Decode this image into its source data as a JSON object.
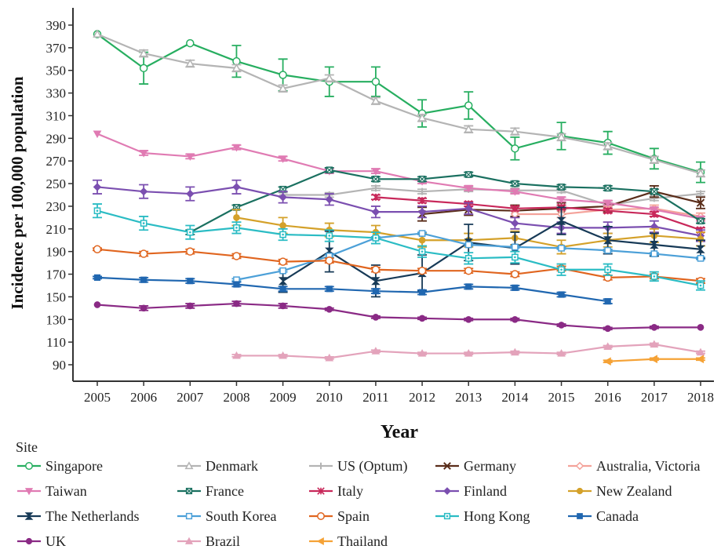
{
  "chart_data": {
    "type": "line",
    "xlabel": "Year",
    "ylabel": "Incidence per 100,000 population",
    "legend_title": "Site",
    "legend_position": "bottom",
    "grid": false,
    "xlim": [
      2005,
      2018
    ],
    "ylim": [
      72,
      400
    ],
    "x_ticks": [
      2005,
      2006,
      2007,
      2008,
      2009,
      2010,
      2011,
      2012,
      2013,
      2014,
      2015,
      2016,
      2017,
      2018
    ],
    "y_ticks": [
      90,
      110,
      130,
      150,
      170,
      190,
      210,
      230,
      250,
      270,
      290,
      310,
      330,
      350,
      370,
      390
    ],
    "series": [
      {
        "name": "Singapore",
        "color": "#27ae60",
        "marker": "circle-open",
        "x": [
          2005,
          2006,
          2007,
          2008,
          2009,
          2010,
          2011,
          2012,
          2013,
          2014,
          2015,
          2016,
          2017,
          2018
        ],
        "y": [
          382,
          352,
          374,
          358,
          346,
          340,
          340,
          312,
          319,
          281,
          292,
          286,
          272,
          260
        ],
        "err": [
          0,
          14,
          0,
          14,
          14,
          13,
          13,
          12,
          12,
          10,
          12,
          10,
          9,
          9
        ]
      },
      {
        "name": "Denmark",
        "color": "#b4b4b4",
        "marker": "triangle-open",
        "x": [
          2005,
          2006,
          2007,
          2008,
          2009,
          2010,
          2011,
          2012,
          2013,
          2014,
          2015,
          2016,
          2017,
          2018
        ],
        "y": [
          382,
          365,
          356,
          352,
          334,
          343,
          323,
          308,
          298,
          296,
          291,
          283,
          271,
          259
        ],
        "err": [
          0,
          3,
          3,
          3,
          3,
          3,
          3,
          3,
          3,
          3,
          3,
          3,
          3,
          3
        ]
      },
      {
        "name": "US (Optum)",
        "color": "#b4b4b4",
        "marker": "plus",
        "x": [
          2009,
          2010,
          2011,
          2012,
          2013,
          2014,
          2015,
          2016,
          2017,
          2018
        ],
        "y": [
          240,
          240,
          246,
          243,
          245,
          244,
          244,
          231,
          237,
          241
        ],
        "err": [
          2,
          2,
          2,
          2,
          2,
          2,
          2,
          2,
          2,
          2
        ]
      },
      {
        "name": "Germany",
        "color": "#5a2d1a",
        "marker": "cross",
        "x": [
          2012,
          2013,
          2014,
          2015,
          2016,
          2017,
          2018
        ],
        "y": [
          223,
          227,
          226,
          228,
          230,
          243,
          233
        ],
        "err": [
          6,
          5,
          5,
          5,
          5,
          5,
          5
        ]
      },
      {
        "name": "Australia, Victoria",
        "color": "#f4a29a",
        "marker": "diamond-open",
        "x": [
          2014,
          2015,
          2016,
          2017,
          2018
        ],
        "y": [
          223,
          223,
          227,
          228,
          221
        ],
        "err": [
          3,
          3,
          3,
          3,
          3
        ]
      },
      {
        "name": "Taiwan",
        "color": "#e07bb3",
        "marker": "triangle-down",
        "x": [
          2005,
          2006,
          2007,
          2008,
          2009,
          2010,
          2011,
          2012,
          2013,
          2014,
          2015,
          2016,
          2017,
          2018
        ],
        "y": [
          294,
          277,
          274,
          282,
          272,
          261,
          261,
          252,
          246,
          243,
          236,
          233,
          227,
          219
        ],
        "err": [
          0,
          2,
          2,
          2,
          2,
          2,
          2,
          2,
          2,
          2,
          2,
          2,
          2,
          2
        ]
      },
      {
        "name": "France",
        "color": "#1a7060",
        "marker": "square-cross",
        "x": [
          2007,
          2008,
          2009,
          2010,
          2011,
          2012,
          2013,
          2014,
          2015,
          2016,
          2017,
          2018
        ],
        "y": [
          207,
          229,
          245,
          262,
          254,
          254,
          258,
          250,
          247,
          246,
          243,
          217
        ],
        "err": [
          2,
          2,
          2,
          2,
          2,
          2,
          2,
          2,
          2,
          2,
          2,
          2
        ]
      },
      {
        "name": "Italy",
        "color": "#c8285a",
        "marker": "asterisk",
        "x": [
          2011,
          2012,
          2013,
          2014,
          2015,
          2016,
          2017,
          2018
        ],
        "y": [
          238,
          235,
          232,
          228,
          229,
          226,
          223,
          209
        ],
        "err": [
          2,
          2,
          2,
          2,
          2,
          2,
          2,
          2
        ]
      },
      {
        "name": "Finland",
        "color": "#7b4fb0",
        "marker": "diamond",
        "x": [
          2005,
          2006,
          2007,
          2008,
          2009,
          2010,
          2011,
          2012,
          2013,
          2014,
          2015,
          2016,
          2017,
          2018
        ],
        "y": [
          247,
          243,
          241,
          247,
          238,
          236,
          225,
          225,
          228,
          215,
          211,
          211,
          212,
          204
        ],
        "err": [
          6,
          6,
          6,
          6,
          5,
          5,
          5,
          5,
          5,
          5,
          5,
          5,
          5,
          5
        ]
      },
      {
        "name": "New Zealand",
        "color": "#d4a12a",
        "marker": "circle",
        "x": [
          2008,
          2009,
          2010,
          2011,
          2012,
          2013,
          2014,
          2015,
          2016,
          2017,
          2018
        ],
        "y": [
          220,
          213,
          209,
          207,
          200,
          200,
          202,
          194,
          200,
          204,
          201
        ],
        "err": [
          7,
          7,
          6,
          6,
          6,
          6,
          6,
          6,
          6,
          6,
          6
        ]
      },
      {
        "name": "The Netherlands",
        "color": "#173a57",
        "marker": "bowtie",
        "x": [
          2009,
          2010,
          2011,
          2012,
          2013,
          2014,
          2015,
          2016,
          2017,
          2018
        ],
        "y": [
          164,
          190,
          164,
          171,
          198,
          193,
          217,
          200,
          196,
          192
        ],
        "err": [
          10,
          18,
          14,
          16,
          16,
          14,
          12,
          12,
          10,
          8
        ]
      },
      {
        "name": "South Korea",
        "color": "#4ca0d8",
        "marker": "square-open",
        "x": [
          2008,
          2009,
          2010,
          2011,
          2012,
          2013,
          2014,
          2015,
          2016,
          2017,
          2018
        ],
        "y": [
          165,
          173,
          186,
          202,
          206,
          196,
          194,
          193,
          191,
          188,
          184
        ],
        "err": [
          1,
          1,
          1,
          1,
          1,
          1,
          1,
          1,
          1,
          1,
          1
        ]
      },
      {
        "name": "Spain",
        "color": "#e0651f",
        "marker": "circle-open",
        "x": [
          2005,
          2006,
          2007,
          2008,
          2009,
          2010,
          2011,
          2012,
          2013,
          2014,
          2015,
          2016,
          2017,
          2018
        ],
        "y": [
          192,
          188,
          190,
          186,
          181,
          182,
          174,
          173,
          173,
          170,
          175,
          167,
          168,
          164
        ],
        "err": [
          1,
          2,
          2,
          2,
          2,
          2,
          2,
          2,
          2,
          2,
          2,
          2,
          2,
          2
        ]
      },
      {
        "name": "Hong Kong",
        "color": "#2bbcc4",
        "marker": "square-dot",
        "x": [
          2005,
          2006,
          2007,
          2008,
          2009,
          2010,
          2011,
          2012,
          2013,
          2014,
          2015,
          2016,
          2017,
          2018
        ],
        "y": [
          226,
          215,
          207,
          211,
          205,
          204,
          202,
          190,
          184,
          185,
          174,
          174,
          168,
          160
        ],
        "err": [
          6,
          6,
          6,
          5,
          5,
          5,
          5,
          5,
          5,
          5,
          5,
          5,
          4,
          4
        ]
      },
      {
        "name": "Canada",
        "color": "#2067b0",
        "marker": "square",
        "x": [
          2005,
          2006,
          2007,
          2008,
          2009,
          2010,
          2011,
          2012,
          2013,
          2014,
          2015,
          2016
        ],
        "y": [
          167,
          165,
          164,
          161,
          157,
          157,
          155,
          154,
          159,
          158,
          152,
          146
        ],
        "err": [
          1,
          2,
          2,
          2,
          2,
          2,
          2,
          2,
          2,
          2,
          2,
          2
        ]
      },
      {
        "name": "UK",
        "color": "#8a2a85",
        "marker": "circle",
        "x": [
          2005,
          2006,
          2007,
          2008,
          2009,
          2010,
          2011,
          2012,
          2013,
          2014,
          2015,
          2016,
          2017,
          2018
        ],
        "y": [
          143,
          140,
          142,
          144,
          142,
          139,
          132,
          131,
          130,
          130,
          125,
          122,
          123,
          123
        ],
        "err": [
          0,
          2,
          2,
          2,
          2,
          1,
          1,
          1,
          1,
          1,
          1,
          1,
          1,
          0
        ]
      },
      {
        "name": "Brazil",
        "color": "#e3a3bb",
        "marker": "triangle",
        "x": [
          2008,
          2009,
          2010,
          2011,
          2012,
          2013,
          2014,
          2015,
          2016,
          2017,
          2018
        ],
        "y": [
          98,
          98,
          96,
          102,
          100,
          100,
          101,
          100,
          106,
          108,
          101
        ],
        "err": [
          1,
          1,
          1,
          1,
          1,
          1,
          1,
          1,
          1,
          1,
          1
        ]
      },
      {
        "name": "Thailand",
        "color": "#f5a236",
        "marker": "triangle-left",
        "x": [
          2016,
          2017,
          2018
        ],
        "y": [
          93,
          95,
          95
        ],
        "err": [
          1,
          1,
          1
        ]
      }
    ]
  }
}
